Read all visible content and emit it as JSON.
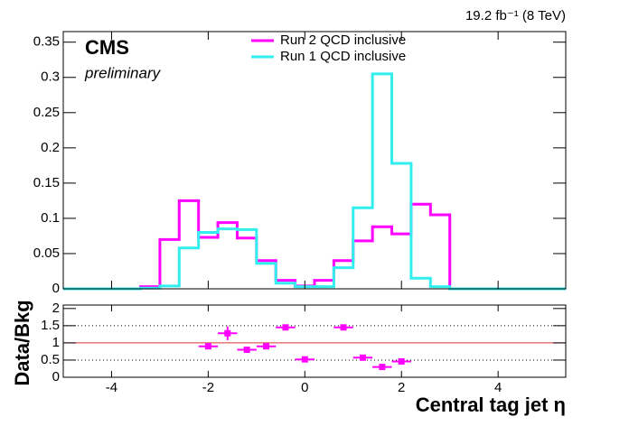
{
  "chart_data": [
    {
      "type": "histogram",
      "title": "19.2 fb⁻¹ (8 TeV)",
      "annotations": [
        "CMS",
        "preliminary"
      ],
      "bins": [
        -5,
        -4.6,
        -4.2,
        -3.8,
        -3.4,
        -3.0,
        -2.6,
        -2.2,
        -1.8,
        -1.4,
        -1.0,
        -0.6,
        -0.2,
        0.2,
        0.6,
        1.0,
        1.4,
        1.8,
        2.2,
        2.6,
        3.0,
        3.4,
        3.8,
        4.2,
        4.6,
        5.0,
        5.4
      ],
      "series": [
        {
          "name": "Run 2 QCD inclusive",
          "color": "#ff00ff",
          "values": [
            0,
            0,
            0,
            0,
            0.003,
            0.07,
            0.125,
            0.073,
            0.094,
            0.072,
            0.04,
            0.012,
            0.004,
            0.012,
            0.04,
            0.068,
            0.088,
            0.078,
            0.12,
            0.105,
            0,
            0,
            0,
            0,
            0,
            0
          ]
        },
        {
          "name": "Run 1 QCD inclusive",
          "color": "#33eeee",
          "values": [
            0,
            0,
            0,
            0,
            0.001,
            0.004,
            0.058,
            0.08,
            0.085,
            0.084,
            0.036,
            0.008,
            0.003,
            0.003,
            0.03,
            0.115,
            0.305,
            0.178,
            0.015,
            0.003,
            0,
            0,
            0,
            0,
            0,
            0
          ]
        }
      ],
      "xlim": [
        -5,
        5.4
      ],
      "xticks": [
        -4,
        -2,
        0,
        2,
        4
      ],
      "ylim": [
        0,
        0.365
      ],
      "yticks": [
        0,
        0.05,
        0.1,
        0.15,
        0.2,
        0.25,
        0.3,
        0.35
      ]
    },
    {
      "type": "errorbar",
      "x_label": "Central tag jet η",
      "y_label": "Data/Bkg",
      "x": [
        -2.0,
        -1.6,
        -1.2,
        -0.8,
        -0.4,
        0.0,
        0.8,
        1.2,
        1.6,
        2.0
      ],
      "values": [
        0.9,
        1.28,
        0.8,
        0.9,
        1.45,
        0.52,
        1.45,
        0.57,
        0.3,
        0.46
      ],
      "errors": [
        0.04,
        0.2,
        0.04,
        0.04,
        0.05,
        0.05,
        0.05,
        0.04,
        0.04,
        0.03
      ],
      "xerr": 0.2,
      "color": "#ff00ff",
      "ref_lines": [
        {
          "y": 0.5,
          "style": "dotted",
          "color": "#000000"
        },
        {
          "y": 1,
          "style": "solid",
          "color": "#e03030"
        },
        {
          "y": 1.5,
          "style": "dotted",
          "color": "#000000"
        }
      ],
      "xlim": [
        -5,
        5.4
      ],
      "xticks": [
        -4,
        -2,
        0,
        2,
        4
      ],
      "ylim": [
        0,
        2.1
      ],
      "yticks": [
        0,
        0.5,
        1,
        1.5,
        2
      ]
    }
  ]
}
